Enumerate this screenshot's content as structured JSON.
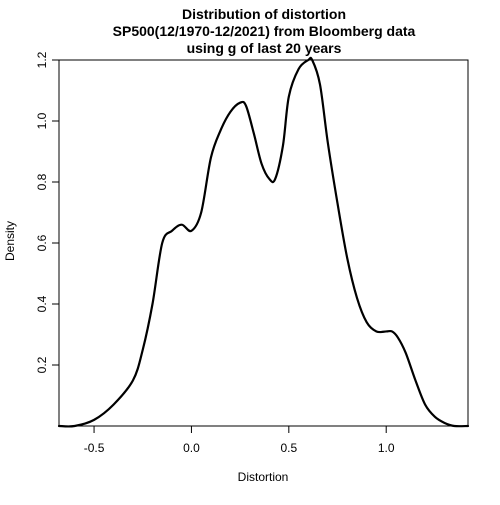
{
  "chart_data": {
    "type": "line",
    "title_lines": [
      "Distribution of distortion",
      "SP500(12/1970-12/2021) from Bloomberg data",
      "using g of last 20 years"
    ],
    "xlabel": "Distortion",
    "ylabel": "Density",
    "xlim": [
      -0.68,
      1.42
    ],
    "ylim": [
      0.0,
      1.2
    ],
    "x_ticks": [
      -0.5,
      0.0,
      0.5,
      1.0
    ],
    "x_tick_labels": [
      "-0.5",
      "0.0",
      "0.5",
      "1.0"
    ],
    "y_ticks": [
      0.2,
      0.4,
      0.6,
      0.8,
      1.0,
      1.2
    ],
    "y_tick_labels": [
      "0.2",
      "0.4",
      "0.6",
      "0.8",
      "1.0",
      "1.2"
    ],
    "grid": false,
    "series": [
      {
        "color": "#000000",
        "x": [
          -0.68,
          -0.6,
          -0.5,
          -0.4,
          -0.3,
          -0.25,
          -0.2,
          -0.15,
          -0.1,
          -0.05,
          0.0,
          0.05,
          0.1,
          0.15,
          0.2,
          0.25,
          0.28,
          0.32,
          0.36,
          0.4,
          0.43,
          0.47,
          0.5,
          0.55,
          0.6,
          0.62,
          0.66,
          0.7,
          0.75,
          0.8,
          0.85,
          0.9,
          0.95,
          1.0,
          1.03,
          1.06,
          1.1,
          1.15,
          1.2,
          1.25,
          1.3,
          1.35,
          1.42
        ],
        "y": [
          0.0,
          0.0,
          0.02,
          0.07,
          0.15,
          0.25,
          0.4,
          0.6,
          0.64,
          0.66,
          0.64,
          0.7,
          0.88,
          0.97,
          1.03,
          1.06,
          1.05,
          0.96,
          0.86,
          0.81,
          0.81,
          0.92,
          1.08,
          1.17,
          1.2,
          1.2,
          1.12,
          0.93,
          0.73,
          0.55,
          0.42,
          0.34,
          0.31,
          0.31,
          0.31,
          0.29,
          0.24,
          0.15,
          0.07,
          0.03,
          0.01,
          0.0,
          0.0
        ]
      }
    ]
  }
}
